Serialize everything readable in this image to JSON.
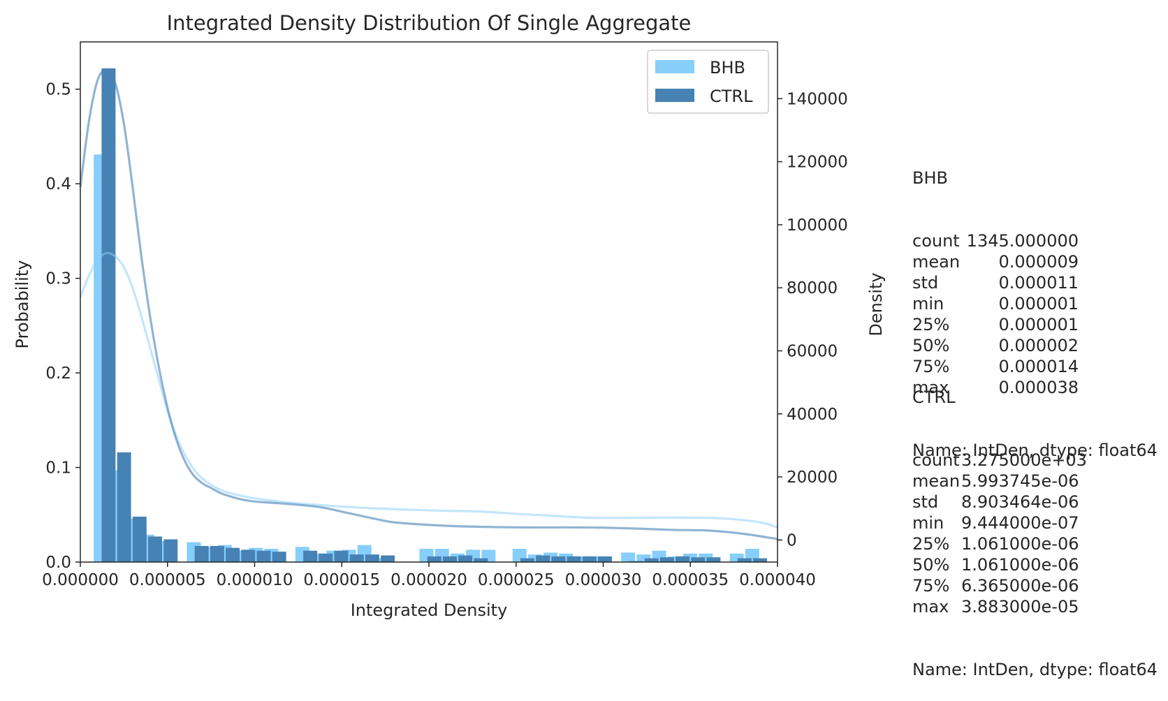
{
  "chart_data": {
    "type": "bar",
    "title": "Integrated Density Distribution Of Single Aggregate",
    "xlabel": "Integrated Density",
    "ylabel": "Probability",
    "ylabel_right": "Density",
    "xlim": [
      0,
      4e-05
    ],
    "ylim": [
      0,
      0.55
    ],
    "ylim_right": [
      -7000,
      158000
    ],
    "xticks": [
      0,
      5e-06,
      1e-05,
      1.5e-05,
      2e-05,
      2.5e-05,
      3e-05,
      3.5e-05,
      4e-05
    ],
    "xtick_labels": [
      "0.000000",
      "0.000005",
      "0.000010",
      "0.000015",
      "0.000020",
      "0.000025",
      "0.000030",
      "0.000035",
      "0.000040"
    ],
    "yticks": [
      0.0,
      0.1,
      0.2,
      0.3,
      0.4,
      0.5
    ],
    "ytick_labels": [
      "0.0",
      "0.1",
      "0.2",
      "0.3",
      "0.4",
      "0.5"
    ],
    "yticks_right": [
      0,
      20000,
      40000,
      60000,
      80000,
      100000,
      120000,
      140000
    ],
    "ytick_right_labels": [
      "0",
      "20000",
      "40000",
      "60000",
      "80000",
      "100000",
      "120000",
      "140000"
    ],
    "legend": {
      "position": "top-right"
    },
    "grid": false,
    "series": [
      {
        "name": "BHB",
        "color": "#87CEFA",
        "bins_x": [
          1.17e-06,
          2.06e-06,
          2.95e-06,
          3.84e-06,
          4.73e-06,
          6.51e-06,
          7.4e-06,
          8.29e-06,
          9.18e-06,
          1.007e-05,
          1.096e-05,
          1.274e-05,
          1.363e-05,
          1.452e-05,
          1.541e-05,
          1.63e-05,
          1.719e-05,
          1.986e-05,
          2.075e-05,
          2.164e-05,
          2.253e-05,
          2.342e-05,
          2.52e-05,
          2.609e-05,
          2.698e-05,
          2.787e-05,
          2.876e-05,
          2.965e-05,
          3.143e-05,
          3.232e-05,
          3.321e-05,
          3.41e-05,
          3.499e-05,
          3.588e-05,
          3.766e-05,
          3.855e-05
        ],
        "probabilities": [
          0.431,
          0.097,
          0.046,
          0.029,
          0.022,
          0.021,
          0.016,
          0.018,
          0.012,
          0.015,
          0.014,
          0.016,
          0.009,
          0.012,
          0.013,
          0.018,
          0.004,
          0.014,
          0.014,
          0.009,
          0.013,
          0.013,
          0.014,
          0.008,
          0.01,
          0.009,
          0.006,
          0.006,
          0.01,
          0.008,
          0.012,
          0.006,
          0.009,
          0.009,
          0.009,
          0.014
        ],
        "kde_x": [
          0,
          5e-07,
          1e-06,
          1.5e-06,
          2e-06,
          2.5e-06,
          3e-06,
          3.5e-06,
          4e-06,
          4.5e-06,
          5e-06,
          5.5e-06,
          6e-06,
          6.5e-06,
          7e-06,
          7.5e-06,
          8e-06,
          8.5e-06,
          9e-06,
          9.5e-06,
          1e-05,
          1.1e-05,
          1.2e-05,
          1.3e-05,
          1.4e-05,
          1.5e-05,
          1.7e-05,
          2e-05,
          2.3e-05,
          2.5e-05,
          2.7e-05,
          2.9e-05,
          3e-05,
          3.1e-05,
          3.3e-05,
          3.5e-05,
          3.7e-05,
          3.9e-05,
          4e-05
        ],
        "kde_density": [
          77000,
          84000,
          89000,
          91000,
          90000,
          86500,
          80000,
          71000,
          61000,
          51000,
          41000,
          33000,
          27000,
          22500,
          19500,
          17500,
          16000,
          15000,
          14300,
          13700,
          13200,
          12500,
          11900,
          11400,
          11000,
          10600,
          10000,
          9400,
          9000,
          8300,
          7700,
          7100,
          7000,
          7000,
          7100,
          7100,
          6800,
          5600,
          4000
        ]
      },
      {
        "name": "CTRL",
        "color": "#4682B4",
        "bins_x": [
          1.62e-06,
          2.51e-06,
          3.4e-06,
          4.29e-06,
          5.18e-06,
          6.96e-06,
          7.85e-06,
          8.74e-06,
          9.63e-06,
          1.052e-05,
          1.141e-05,
          1.319e-05,
          1.408e-05,
          1.497e-05,
          1.586e-05,
          1.675e-05,
          1.764e-05,
          2.031e-05,
          2.12e-05,
          2.209e-05,
          2.298e-05,
          2.387e-05,
          2.565e-05,
          2.654e-05,
          2.743e-05,
          2.832e-05,
          2.921e-05,
          3.01e-05,
          3.188e-05,
          3.277e-05,
          3.366e-05,
          3.455e-05,
          3.544e-05,
          3.633e-05,
          3.811e-05,
          3.9e-05
        ],
        "probabilities": [
          0.522,
          0.116,
          0.048,
          0.027,
          0.024,
          0.017,
          0.017,
          0.015,
          0.013,
          0.012,
          0.011,
          0.012,
          0.009,
          0.012,
          0.008,
          0.008,
          0.007,
          0.006,
          0.006,
          0.007,
          0.004,
          0.0,
          0.004,
          0.007,
          0.006,
          0.006,
          0.006,
          0.006,
          0.001,
          0.004,
          0.005,
          0.006,
          0.005,
          0.005,
          0.004,
          0.004
        ],
        "kde_x": [
          0,
          5e-07,
          1e-06,
          1.5e-06,
          2e-06,
          2.5e-06,
          3e-06,
          3.5e-06,
          4e-06,
          4.5e-06,
          5e-06,
          5.5e-06,
          6e-06,
          6.5e-06,
          7e-06,
          7.5e-06,
          8e-06,
          8.5e-06,
          9e-06,
          9.5e-06,
          1e-05,
          1.1e-05,
          1.2e-05,
          1.3e-05,
          1.4e-05,
          1.5e-05,
          1.6e-05,
          1.7e-05,
          1.8e-05,
          2e-05,
          2.2e-05,
          2.5e-05,
          2.8e-05,
          3e-05,
          3.2e-05,
          3.4e-05,
          3.6e-05,
          3.8e-05,
          4e-05
        ],
        "kde_density": [
          112000,
          133000,
          146000,
          149000,
          145000,
          132000,
          112000,
          90000,
          71000,
          55000,
          42000,
          32000,
          25000,
          20500,
          18000,
          16500,
          15000,
          14000,
          13200,
          12600,
          12200,
          11800,
          11400,
          10900,
          10200,
          9000,
          7800,
          6600,
          5600,
          4800,
          4300,
          4000,
          4000,
          3900,
          3600,
          3200,
          3000,
          2000,
          300
        ]
      }
    ]
  },
  "stats": {
    "bhb": {
      "title": "BHB",
      "rows": [
        [
          "count",
          "1345.000000"
        ],
        [
          "mean",
          "0.000009"
        ],
        [
          "std",
          "0.000011"
        ],
        [
          "min",
          "0.000001"
        ],
        [
          "25%",
          "0.000001"
        ],
        [
          "50%",
          "0.000002"
        ],
        [
          "75%",
          "0.000014"
        ],
        [
          "max",
          "0.000038"
        ]
      ],
      "footer": "Name: IntDen, dtype: float64"
    },
    "ctrl": {
      "title": "CTRL",
      "rows": [
        [
          "count",
          "3.275000e+03"
        ],
        [
          "mean",
          "5.993745e-06"
        ],
        [
          "std",
          "8.903464e-06"
        ],
        [
          "min",
          "9.444000e-07"
        ],
        [
          "25%",
          "1.061000e-06"
        ],
        [
          "50%",
          "1.061000e-06"
        ],
        [
          "75%",
          "6.365000e-06"
        ],
        [
          "max",
          "3.883000e-05"
        ]
      ],
      "footer": "Name: IntDen, dtype: float64"
    }
  }
}
